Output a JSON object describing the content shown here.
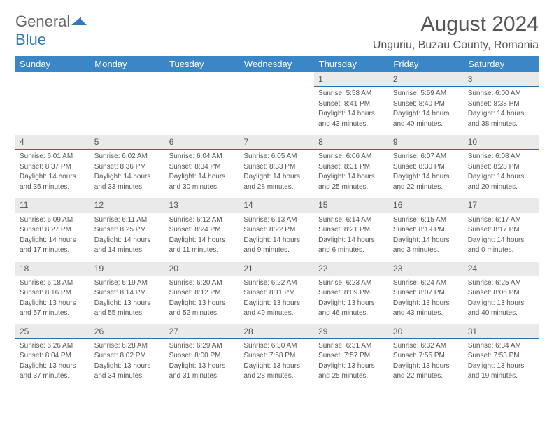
{
  "logo": {
    "general": "General",
    "blue": "Blue"
  },
  "title": "August 2024",
  "location": "Unguriu, Buzau County, Romania",
  "colors": {
    "header_bg": "#3b86c6",
    "header_text": "#ffffff",
    "daynum_bg": "#eaeaea",
    "daynum_border": "#2f6fa8",
    "text": "#555555",
    "logo_blue": "#2f7bbf"
  },
  "weekdays": [
    "Sunday",
    "Monday",
    "Tuesday",
    "Wednesday",
    "Thursday",
    "Friday",
    "Saturday"
  ],
  "weeks": [
    [
      null,
      null,
      null,
      null,
      {
        "n": "1",
        "sr": "Sunrise: 5:58 AM",
        "ss": "Sunset: 8:41 PM",
        "d1": "Daylight: 14 hours",
        "d2": "and 43 minutes."
      },
      {
        "n": "2",
        "sr": "Sunrise: 5:59 AM",
        "ss": "Sunset: 8:40 PM",
        "d1": "Daylight: 14 hours",
        "d2": "and 40 minutes."
      },
      {
        "n": "3",
        "sr": "Sunrise: 6:00 AM",
        "ss": "Sunset: 8:38 PM",
        "d1": "Daylight: 14 hours",
        "d2": "and 38 minutes."
      }
    ],
    [
      {
        "n": "4",
        "sr": "Sunrise: 6:01 AM",
        "ss": "Sunset: 8:37 PM",
        "d1": "Daylight: 14 hours",
        "d2": "and 35 minutes."
      },
      {
        "n": "5",
        "sr": "Sunrise: 6:02 AM",
        "ss": "Sunset: 8:36 PM",
        "d1": "Daylight: 14 hours",
        "d2": "and 33 minutes."
      },
      {
        "n": "6",
        "sr": "Sunrise: 6:04 AM",
        "ss": "Sunset: 8:34 PM",
        "d1": "Daylight: 14 hours",
        "d2": "and 30 minutes."
      },
      {
        "n": "7",
        "sr": "Sunrise: 6:05 AM",
        "ss": "Sunset: 8:33 PM",
        "d1": "Daylight: 14 hours",
        "d2": "and 28 minutes."
      },
      {
        "n": "8",
        "sr": "Sunrise: 6:06 AM",
        "ss": "Sunset: 8:31 PM",
        "d1": "Daylight: 14 hours",
        "d2": "and 25 minutes."
      },
      {
        "n": "9",
        "sr": "Sunrise: 6:07 AM",
        "ss": "Sunset: 8:30 PM",
        "d1": "Daylight: 14 hours",
        "d2": "and 22 minutes."
      },
      {
        "n": "10",
        "sr": "Sunrise: 6:08 AM",
        "ss": "Sunset: 8:28 PM",
        "d1": "Daylight: 14 hours",
        "d2": "and 20 minutes."
      }
    ],
    [
      {
        "n": "11",
        "sr": "Sunrise: 6:09 AM",
        "ss": "Sunset: 8:27 PM",
        "d1": "Daylight: 14 hours",
        "d2": "and 17 minutes."
      },
      {
        "n": "12",
        "sr": "Sunrise: 6:11 AM",
        "ss": "Sunset: 8:25 PM",
        "d1": "Daylight: 14 hours",
        "d2": "and 14 minutes."
      },
      {
        "n": "13",
        "sr": "Sunrise: 6:12 AM",
        "ss": "Sunset: 8:24 PM",
        "d1": "Daylight: 14 hours",
        "d2": "and 11 minutes."
      },
      {
        "n": "14",
        "sr": "Sunrise: 6:13 AM",
        "ss": "Sunset: 8:22 PM",
        "d1": "Daylight: 14 hours",
        "d2": "and 9 minutes."
      },
      {
        "n": "15",
        "sr": "Sunrise: 6:14 AM",
        "ss": "Sunset: 8:21 PM",
        "d1": "Daylight: 14 hours",
        "d2": "and 6 minutes."
      },
      {
        "n": "16",
        "sr": "Sunrise: 6:15 AM",
        "ss": "Sunset: 8:19 PM",
        "d1": "Daylight: 14 hours",
        "d2": "and 3 minutes."
      },
      {
        "n": "17",
        "sr": "Sunrise: 6:17 AM",
        "ss": "Sunset: 8:17 PM",
        "d1": "Daylight: 14 hours",
        "d2": "and 0 minutes."
      }
    ],
    [
      {
        "n": "18",
        "sr": "Sunrise: 6:18 AM",
        "ss": "Sunset: 8:16 PM",
        "d1": "Daylight: 13 hours",
        "d2": "and 57 minutes."
      },
      {
        "n": "19",
        "sr": "Sunrise: 6:19 AM",
        "ss": "Sunset: 8:14 PM",
        "d1": "Daylight: 13 hours",
        "d2": "and 55 minutes."
      },
      {
        "n": "20",
        "sr": "Sunrise: 6:20 AM",
        "ss": "Sunset: 8:12 PM",
        "d1": "Daylight: 13 hours",
        "d2": "and 52 minutes."
      },
      {
        "n": "21",
        "sr": "Sunrise: 6:22 AM",
        "ss": "Sunset: 8:11 PM",
        "d1": "Daylight: 13 hours",
        "d2": "and 49 minutes."
      },
      {
        "n": "22",
        "sr": "Sunrise: 6:23 AM",
        "ss": "Sunset: 8:09 PM",
        "d1": "Daylight: 13 hours",
        "d2": "and 46 minutes."
      },
      {
        "n": "23",
        "sr": "Sunrise: 6:24 AM",
        "ss": "Sunset: 8:07 PM",
        "d1": "Daylight: 13 hours",
        "d2": "and 43 minutes."
      },
      {
        "n": "24",
        "sr": "Sunrise: 6:25 AM",
        "ss": "Sunset: 8:06 PM",
        "d1": "Daylight: 13 hours",
        "d2": "and 40 minutes."
      }
    ],
    [
      {
        "n": "25",
        "sr": "Sunrise: 6:26 AM",
        "ss": "Sunset: 8:04 PM",
        "d1": "Daylight: 13 hours",
        "d2": "and 37 minutes."
      },
      {
        "n": "26",
        "sr": "Sunrise: 6:28 AM",
        "ss": "Sunset: 8:02 PM",
        "d1": "Daylight: 13 hours",
        "d2": "and 34 minutes."
      },
      {
        "n": "27",
        "sr": "Sunrise: 6:29 AM",
        "ss": "Sunset: 8:00 PM",
        "d1": "Daylight: 13 hours",
        "d2": "and 31 minutes."
      },
      {
        "n": "28",
        "sr": "Sunrise: 6:30 AM",
        "ss": "Sunset: 7:58 PM",
        "d1": "Daylight: 13 hours",
        "d2": "and 28 minutes."
      },
      {
        "n": "29",
        "sr": "Sunrise: 6:31 AM",
        "ss": "Sunset: 7:57 PM",
        "d1": "Daylight: 13 hours",
        "d2": "and 25 minutes."
      },
      {
        "n": "30",
        "sr": "Sunrise: 6:32 AM",
        "ss": "Sunset: 7:55 PM",
        "d1": "Daylight: 13 hours",
        "d2": "and 22 minutes."
      },
      {
        "n": "31",
        "sr": "Sunrise: 6:34 AM",
        "ss": "Sunset: 7:53 PM",
        "d1": "Daylight: 13 hours",
        "d2": "and 19 minutes."
      }
    ]
  ]
}
